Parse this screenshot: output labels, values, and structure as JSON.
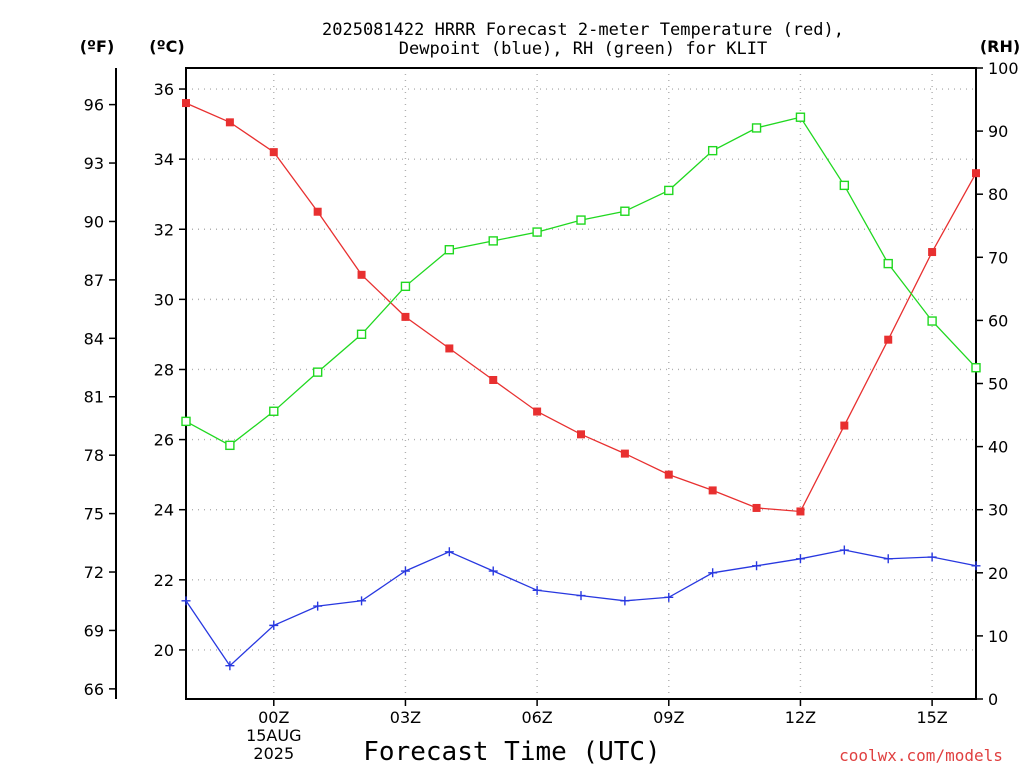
{
  "chart_data": {
    "type": "line",
    "title_line1": "2025081422 HRRR Forecast 2-meter Temperature (red),",
    "title_line2": "Dewpoint (blue), RH (green) for KLIT",
    "xlabel": "Forecast Time (UTC)",
    "credit": "coolwx.com/models",
    "units": {
      "fahrenheit": "(ºF)",
      "celsius": "(ºC)",
      "rh": "(RH)"
    },
    "x": [
      -2,
      -1,
      0,
      1,
      2,
      3,
      4,
      5,
      6,
      7,
      8,
      9,
      10,
      11,
      12,
      13,
      14,
      15,
      16
    ],
    "x_ticks": [
      {
        "value": 0,
        "label": "00Z",
        "date": "15AUG",
        "year": "2025"
      },
      {
        "value": 3,
        "label": "03Z"
      },
      {
        "value": 6,
        "label": "06Z"
      },
      {
        "value": 9,
        "label": "09Z"
      },
      {
        "value": 12,
        "label": "12Z"
      },
      {
        "value": 15,
        "label": "15Z"
      }
    ],
    "xlim": [
      -2,
      16
    ],
    "ylim_celsius": [
      18.6,
      36.6
    ],
    "ylim_rh": [
      0,
      100
    ],
    "celsius_ticks": [
      20,
      22,
      24,
      26,
      28,
      30,
      32,
      34,
      36
    ],
    "fahrenheit_ticks": [
      66,
      69,
      72,
      75,
      78,
      81,
      84,
      87,
      90,
      93,
      96
    ],
    "rh_ticks": [
      0,
      10,
      20,
      30,
      40,
      50,
      60,
      70,
      80,
      90,
      100
    ],
    "grid": true,
    "series": [
      {
        "name": "Temperature (red)",
        "axis": "celsius",
        "color": "#e83030",
        "marker": "filled-square",
        "values": [
          35.6,
          35.05,
          34.2,
          32.5,
          30.7,
          29.5,
          28.6,
          27.7,
          26.8,
          26.15,
          25.6,
          25.0,
          24.55,
          24.05,
          23.95,
          26.4,
          28.85,
          31.35,
          33.6
        ]
      },
      {
        "name": "Dewpoint (blue)",
        "axis": "celsius",
        "color": "#2838e0",
        "marker": "plus",
        "values": [
          21.4,
          19.55,
          20.7,
          21.25,
          21.4,
          22.25,
          22.8,
          22.25,
          21.7,
          21.55,
          21.4,
          21.5,
          22.2,
          22.4,
          22.6,
          22.85,
          22.6,
          22.65,
          22.4
        ]
      },
      {
        "name": "RH (green)",
        "axis": "rh",
        "color": "#20d820",
        "marker": "open-square",
        "values": [
          44.0,
          40.2,
          45.6,
          51.8,
          57.8,
          65.4,
          71.2,
          72.6,
          74.0,
          75.9,
          77.3,
          80.6,
          86.9,
          90.5,
          92.2,
          81.4,
          69.0,
          59.9,
          52.5
        ]
      }
    ]
  }
}
